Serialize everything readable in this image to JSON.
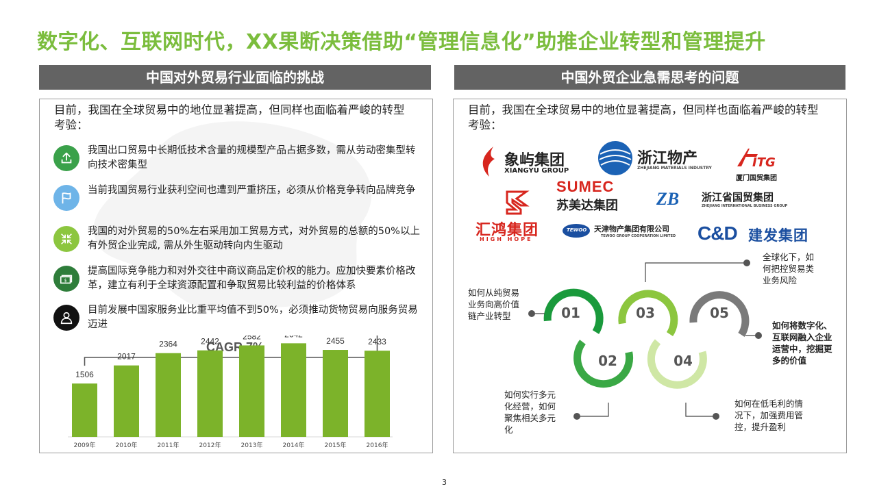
{
  "title": "数字化、互联网时代，XX果断决策借助“管理信息化”助推企业转型和管理提升",
  "left": {
    "header": "中国对外贸易行业面临的挑战",
    "intro": "目前，我国在全球贸易中的地位显著提高，但同样也面临着严峻的转型考验：",
    "items": [
      {
        "text": "我国出口贸易中长期低技术含量的规模型产品占据多数，需从劳动密集型转向技术密集型",
        "icon": "upload-icon",
        "color": "#3aa14a"
      },
      {
        "text": "当前我国贸易行业获利空间也遭到严重挤压，必须从价格竞争转向品牌竞争",
        "icon": "flag-icon",
        "color": "#6eb4e8"
      },
      {
        "text": "我国的对外贸易的50%左右采用加工贸易方式，对外贸易的总额的50%以上有外贸企业完成, 需从外生驱动转向内生驱动",
        "icon": "compress-icon",
        "color": "#8cc63f"
      },
      {
        "text": "提高国际竞争能力和对外交往中商议商品定价权的能力。应加快要素价格改革，建立有利于全球资源配置和争取贸易比较利益的价格体系",
        "icon": "money-icon",
        "color": "#2e7d3a"
      },
      {
        "text": "目前发展中国家服务业比重平均值不到50%，必须推动货物贸易向服务贸易迈进",
        "icon": "person-icon",
        "color": "#111111"
      }
    ],
    "cagr_label": "CAGR 7%"
  },
  "chart_data": {
    "type": "bar",
    "categories": [
      "2009年",
      "2010年",
      "2011年",
      "2012年",
      "2013年",
      "2014年",
      "2015年",
      "2016年"
    ],
    "values": [
      1506,
      2017,
      2364,
      2442,
      2582,
      2642,
      2455,
      2433
    ],
    "annotation": "CAGR 7%",
    "color": "#7cb32a",
    "ylim": [
      0,
      2900
    ]
  },
  "right": {
    "header": "中国外贸企业急需思考的问题",
    "intro": "目前，我国在全球贸易中的地位显著提高，但同样也面临着严峻的转型考验：",
    "logos": {
      "xiangyu_cn": "象屿集团",
      "xiangyu_en": "XIANGYU GROUP",
      "zhejiang_cn": "浙江物产",
      "zhejiang_en": "ZHEJIANG MATERIALS INDUSTRY",
      "itg_mark": "ITG",
      "itg_cn": "厦门国贸集团",
      "sumec_en": "SUMEC",
      "sumec_cn": "苏美达集团",
      "zib_mark": "ZB",
      "zib_cn": "浙江省国贸集团",
      "zib_en": "ZHEJIANG INTERNATIONAL BUSINESS GROUP",
      "hh_cn": "汇鸿集团",
      "hh_en": "HIGH HOPE",
      "tewoo_mark": "TEWOO",
      "tewoo_cn": "天津物产集团有限公司",
      "tewoo_en": "TEWOO GROUP COOPERATION LIMITED",
      "cd_mark": "C&D",
      "cd_cn": "建发集团"
    },
    "numbers": [
      "01",
      "02",
      "03",
      "04",
      "05"
    ],
    "annotations": {
      "a01": "如何从纯贸易业务向高价值链产业转型",
      "a02": "如何实行多元化经营，如何聚焦相关多元化",
      "a03": "全球化下，如何把控贸易类业务风险",
      "a04": "如何在低毛利的情况下，加强费用管控，提升盈利",
      "a05": "如何将数字化、互联网融入企业运营中，挖掘更多的价值"
    }
  },
  "page_number": "3"
}
